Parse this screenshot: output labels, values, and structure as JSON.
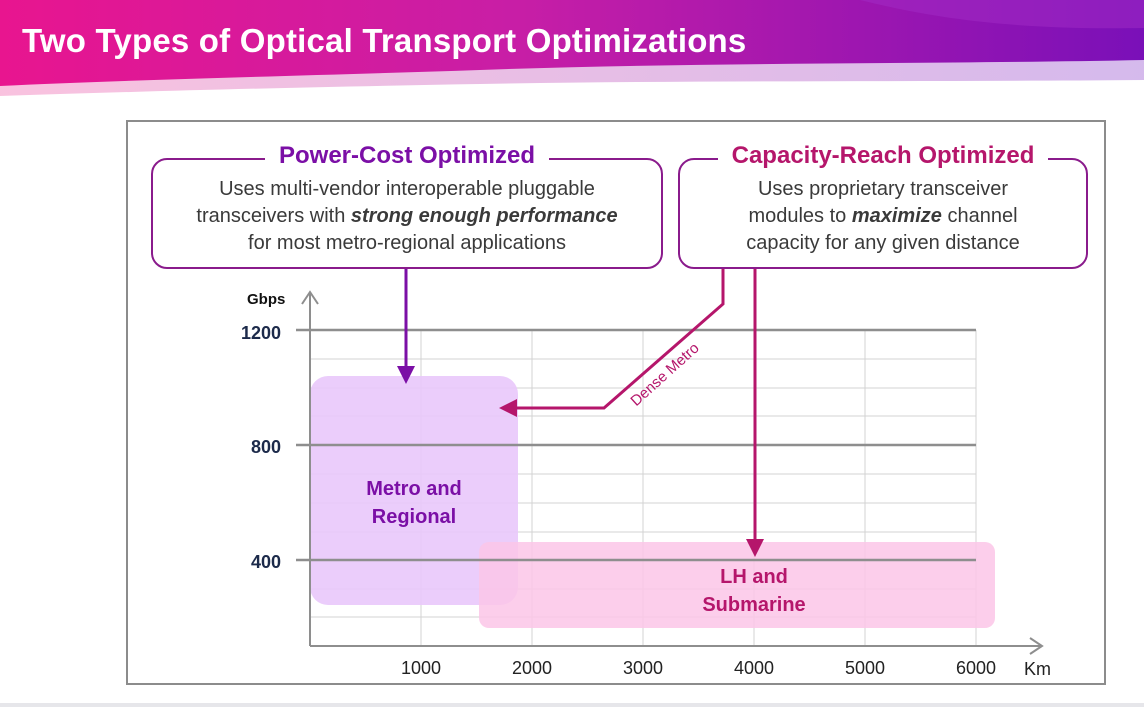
{
  "slide": {
    "title": "Two Types of Optical Transport Optimizations"
  },
  "panels": {
    "power_cost": {
      "title": "Power-Cost Optimized",
      "line1": "Uses multi-vendor interoperable pluggable",
      "line2_pre": "transceivers with ",
      "line2_em": "strong enough performance",
      "line3": "for most metro-regional applications"
    },
    "capacity_reach": {
      "title": "Capacity-Reach Optimized",
      "line1": "Uses proprietary transceiver",
      "line2_pre": "modules to ",
      "line2_em": "maximize",
      "line2_post": " channel",
      "line3": "capacity for any given distance"
    }
  },
  "axes": {
    "y_unit": "Gbps",
    "x_unit": "Km",
    "y_ticks": [
      "400",
      "800",
      "1200"
    ],
    "x_ticks": [
      "1000",
      "2000",
      "3000",
      "4000",
      "5000",
      "6000"
    ]
  },
  "regions": {
    "metro": {
      "line1": "Metro and",
      "line2": "Regional"
    },
    "lh": {
      "line1": "LH and",
      "line2": "Submarine"
    }
  },
  "annotation": {
    "dense_metro": "Dense Metro"
  },
  "colors": {
    "purple": "#7b0fa6",
    "magenta": "#b5166b",
    "metro_fill": "#e9c8fb",
    "lh_fill": "#fbc6e8",
    "grid": "#d0d0d0",
    "grid_major": "#8e8e8e"
  }
}
